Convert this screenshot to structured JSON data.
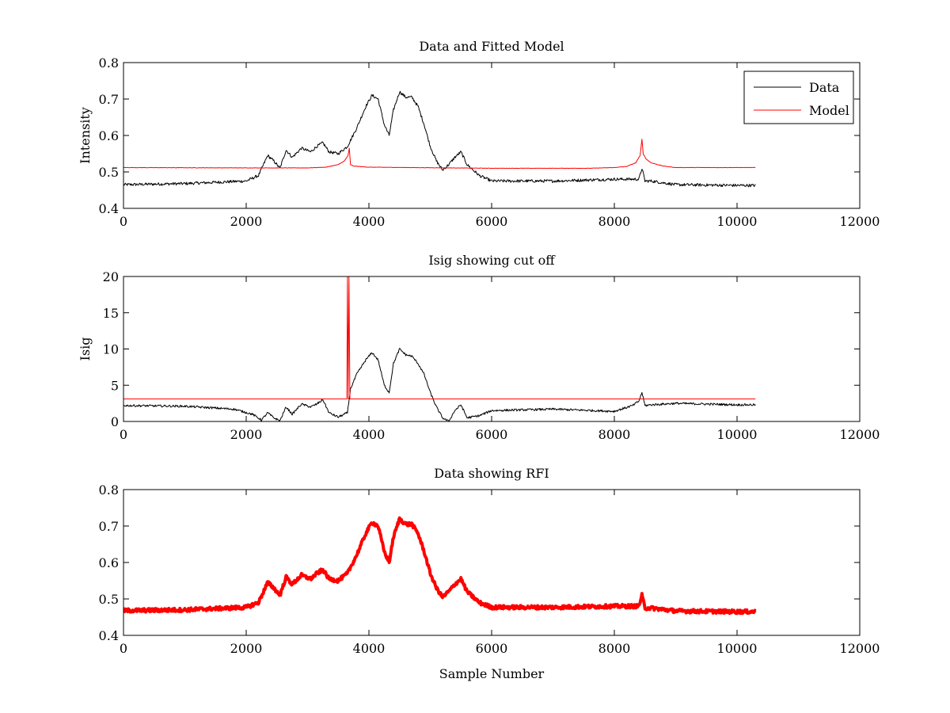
{
  "colors": {
    "data": "#000000",
    "model": "#ff0000",
    "rfi": "#ff0000",
    "axes": "#000000"
  },
  "chart_data": [
    {
      "type": "line",
      "title": "Data and Fitted Model",
      "xlabel": "",
      "ylabel": "Intensity",
      "xlim": [
        0,
        12000
      ],
      "ylim": [
        0.4,
        0.8
      ],
      "xticks": [
        0,
        2000,
        4000,
        6000,
        8000,
        10000,
        12000
      ],
      "yticks": [
        0.4,
        0.5,
        0.6,
        0.7,
        0.8
      ],
      "xtick_labels": [
        "0",
        "2000",
        "4000",
        "6000",
        "8000",
        "10000",
        "12000"
      ],
      "ytick_labels": [
        "0.4",
        "0.5",
        "0.6",
        "0.7",
        "0.8"
      ],
      "legend": {
        "position": "top-right",
        "entries": [
          "Data",
          "Model"
        ]
      },
      "series": [
        {
          "name": "Data",
          "color": "#000000",
          "noise": 0.004,
          "x": [
            0,
            1000,
            2000,
            2200,
            2350,
            2450,
            2550,
            2650,
            2750,
            2900,
            3050,
            3150,
            3250,
            3350,
            3500,
            3650,
            3800,
            3950,
            4050,
            4150,
            4250,
            4330,
            4400,
            4500,
            4600,
            4700,
            4800,
            4900,
            5000,
            5100,
            5200,
            5300,
            5400,
            5500,
            5600,
            5800,
            6000,
            7000,
            8000,
            8400,
            8450,
            8500,
            8600,
            9000,
            10000,
            10300
          ],
          "y": [
            0.465,
            0.468,
            0.475,
            0.49,
            0.545,
            0.53,
            0.51,
            0.56,
            0.54,
            0.565,
            0.555,
            0.57,
            0.58,
            0.555,
            0.55,
            0.57,
            0.62,
            0.68,
            0.71,
            0.7,
            0.63,
            0.6,
            0.67,
            0.72,
            0.705,
            0.705,
            0.68,
            0.63,
            0.57,
            0.53,
            0.505,
            0.52,
            0.54,
            0.555,
            0.52,
            0.49,
            0.475,
            0.475,
            0.48,
            0.48,
            0.51,
            0.475,
            0.475,
            0.465,
            0.463,
            0.463
          ]
        },
        {
          "name": "Model",
          "color": "#ff0000",
          "noise": 0.0005,
          "x": [
            0,
            2000,
            3000,
            3300,
            3500,
            3600,
            3660,
            3680,
            3700,
            3750,
            4000,
            6000,
            7600,
            8000,
            8200,
            8350,
            8420,
            8450,
            8470,
            8520,
            8600,
            8800,
            9000,
            10300
          ],
          "y": [
            0.512,
            0.511,
            0.511,
            0.513,
            0.52,
            0.53,
            0.545,
            0.565,
            0.52,
            0.516,
            0.513,
            0.51,
            0.51,
            0.512,
            0.515,
            0.525,
            0.545,
            0.59,
            0.55,
            0.535,
            0.525,
            0.516,
            0.512,
            0.512
          ]
        }
      ]
    },
    {
      "type": "line",
      "title": "Isig showing cut off",
      "xlabel": "",
      "ylabel": "Isig",
      "xlim": [
        0,
        12000
      ],
      "ylim": [
        0,
        20
      ],
      "xticks": [
        0,
        2000,
        4000,
        6000,
        8000,
        10000,
        12000
      ],
      "yticks": [
        0,
        5,
        10,
        15,
        20
      ],
      "xtick_labels": [
        "0",
        "2000",
        "4000",
        "6000",
        "8000",
        "10000",
        "12000"
      ],
      "ytick_labels": [
        "0",
        "5",
        "10",
        "15",
        "20"
      ],
      "series": [
        {
          "color": "#000000",
          "noise": 0.15,
          "x": [
            0,
            1000,
            1800,
            2100,
            2250,
            2350,
            2450,
            2550,
            2650,
            2750,
            2900,
            3050,
            3150,
            3250,
            3350,
            3500,
            3650,
            3700,
            3800,
            3950,
            4050,
            4150,
            4250,
            4330,
            4400,
            4500,
            4600,
            4700,
            4800,
            4900,
            5000,
            5100,
            5200,
            5300,
            5400,
            5500,
            5600,
            5800,
            6000,
            7000,
            8000,
            8300,
            8400,
            8450,
            8500,
            8600,
            9000,
            10000,
            10300
          ],
          "y": [
            2.2,
            2.1,
            1.7,
            1.0,
            0.2,
            1.2,
            0.5,
            0.1,
            2.0,
            1.0,
            2.4,
            2.0,
            2.4,
            3.0,
            1.2,
            0.6,
            1.2,
            4.5,
            6.5,
            8.5,
            9.5,
            8.5,
            5.0,
            4.0,
            8.0,
            10.0,
            9.2,
            9.0,
            8.0,
            6.5,
            4.0,
            2.0,
            0.5,
            0.0,
            1.5,
            2.3,
            0.5,
            0.8,
            1.5,
            1.7,
            1.4,
            2.2,
            2.8,
            4.0,
            2.2,
            2.3,
            2.5,
            2.3,
            2.3
          ]
        },
        {
          "color": "#ff0000",
          "noise": 0,
          "x": [
            0,
            3640,
            3650,
            3662,
            3675,
            3690,
            10300
          ],
          "y": [
            3.1,
            3.1,
            20,
            3.1,
            20,
            3.1,
            3.1
          ]
        }
      ]
    },
    {
      "type": "line",
      "title": "Data showing RFI",
      "xlabel": "Sample Number",
      "ylabel": "",
      "xlim": [
        0,
        12000
      ],
      "ylim": [
        0.4,
        0.8
      ],
      "xticks": [
        0,
        2000,
        4000,
        6000,
        8000,
        10000,
        12000
      ],
      "yticks": [
        0.4,
        0.5,
        0.6,
        0.7,
        0.8
      ],
      "xtick_labels": [
        "0",
        "2000",
        "4000",
        "6000",
        "8000",
        "10000",
        "12000"
      ],
      "ytick_labels": [
        "0.4",
        "0.5",
        "0.6",
        "0.7",
        "0.8"
      ],
      "series": [
        {
          "color": "#ff0000",
          "noise": 0.005,
          "width": 4,
          "x": [
            0,
            1000,
            2000,
            2200,
            2350,
            2450,
            2550,
            2650,
            2750,
            2900,
            3050,
            3150,
            3250,
            3350,
            3500,
            3650,
            3800,
            3950,
            4050,
            4150,
            4250,
            4330,
            4400,
            4500,
            4600,
            4700,
            4800,
            4900,
            5000,
            5100,
            5200,
            5300,
            5400,
            5500,
            5600,
            5800,
            6000,
            7000,
            8000,
            8400,
            8450,
            8500,
            8600,
            9000,
            10000,
            10300
          ],
          "y": [
            0.468,
            0.47,
            0.477,
            0.49,
            0.545,
            0.53,
            0.51,
            0.56,
            0.54,
            0.565,
            0.555,
            0.57,
            0.58,
            0.555,
            0.55,
            0.57,
            0.62,
            0.68,
            0.71,
            0.7,
            0.63,
            0.6,
            0.67,
            0.72,
            0.705,
            0.705,
            0.68,
            0.63,
            0.57,
            0.53,
            0.505,
            0.52,
            0.54,
            0.555,
            0.52,
            0.49,
            0.477,
            0.477,
            0.48,
            0.48,
            0.51,
            0.475,
            0.475,
            0.467,
            0.465,
            0.465
          ]
        }
      ]
    }
  ]
}
